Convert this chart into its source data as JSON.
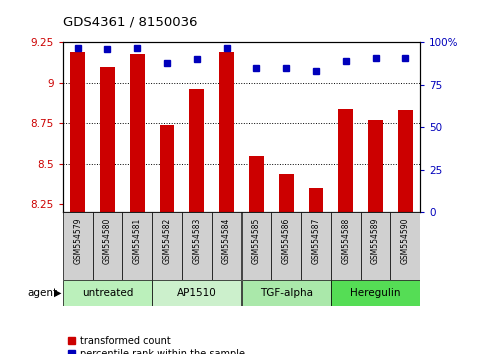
{
  "title": "GDS4361 / 8150036",
  "samples": [
    "GSM554579",
    "GSM554580",
    "GSM554581",
    "GSM554582",
    "GSM554583",
    "GSM554584",
    "GSM554585",
    "GSM554586",
    "GSM554587",
    "GSM554588",
    "GSM554589",
    "GSM554590"
  ],
  "red_values": [
    9.19,
    9.1,
    9.18,
    8.74,
    8.96,
    9.19,
    8.55,
    8.44,
    8.35,
    8.84,
    8.77,
    8.83
  ],
  "blue_values": [
    97,
    96,
    97,
    88,
    90,
    97,
    85,
    85,
    83,
    89,
    91,
    91
  ],
  "ymin": 8.2,
  "ymax": 9.25,
  "y2min": 0,
  "y2max": 100,
  "yticks": [
    8.25,
    8.5,
    8.75,
    9.0,
    9.25
  ],
  "y2ticks": [
    0,
    25,
    50,
    75,
    100
  ],
  "ytick_labels": [
    "8.25",
    "8.5",
    "8.75",
    "9",
    "9.25"
  ],
  "y2tick_labels": [
    "0",
    "25",
    "50",
    "75",
    "100%"
  ],
  "grid_lines": [
    8.5,
    8.75,
    9.0
  ],
  "red_color": "#cc0000",
  "blue_color": "#0000bb",
  "bar_width": 0.5,
  "groups": [
    {
      "label": "untreated",
      "start": 0,
      "end": 2,
      "color": "#bbf0bb"
    },
    {
      "label": "AP1510",
      "start": 3,
      "end": 5,
      "color": "#ccf0cc"
    },
    {
      "label": "TGF-alpha",
      "start": 6,
      "end": 8,
      "color": "#aae8aa"
    },
    {
      "label": "Heregulin",
      "start": 9,
      "end": 11,
      "color": "#55dd55"
    }
  ],
  "legend_items": [
    {
      "label": "transformed count",
      "color": "#cc0000"
    },
    {
      "label": "percentile rank within the sample",
      "color": "#0000bb"
    }
  ],
  "agent_label": "agent",
  "sample_box_color": "#d0d0d0",
  "plot_bg": "#ffffff"
}
